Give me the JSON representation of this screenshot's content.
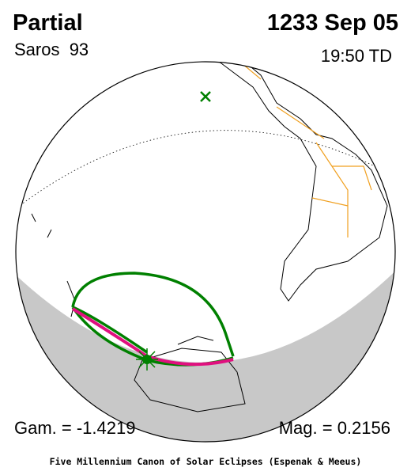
{
  "header": {
    "title": "Partial",
    "date": "1233 Sep 05",
    "saros": "Saros  93",
    "time": "19:50 TD"
  },
  "footer": {
    "gamma": "Gam. = -1.4219",
    "magnitude": "Mag. = 0.2156",
    "credit": "Five Millennium Canon of Solar Eclipses (Espenak & Meeus)"
  }
}
